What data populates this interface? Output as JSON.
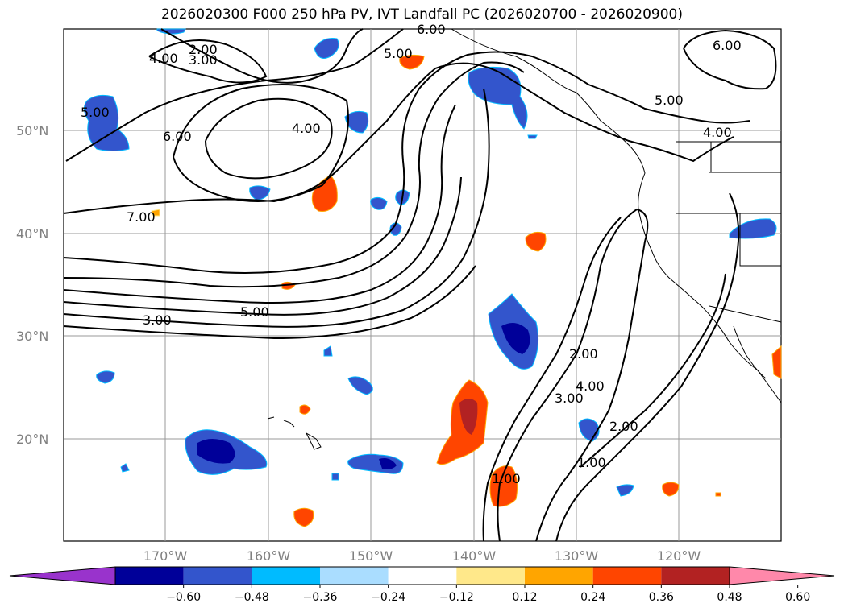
{
  "title": "2026020300 F000 250 hPa PV, IVT Landfall PC (2026020700 - 2026020900)",
  "lat_labels": [
    "50°N",
    "40°N",
    "30°N",
    "20°N"
  ],
  "lon_labels": [
    "170°W",
    "160°W",
    "150°W",
    "140°W",
    "130°W",
    "120°W"
  ],
  "contour_labels": [
    "2.00",
    "3.00",
    "4.00",
    "5.00",
    "6.00",
    "5.00",
    "6.00",
    "5.00",
    "4.00",
    "6.00",
    "4.00",
    "7.00",
    "3.00",
    "5.00",
    "2.00",
    "3.00",
    "4.00",
    "2.00",
    "1.00",
    "1.00"
  ],
  "colorbar": {
    "ticks": [
      "−0.60",
      "−0.48",
      "−0.36",
      "−0.24",
      "−0.12",
      "0.12",
      "0.24",
      "0.36",
      "0.48",
      "0.60"
    ],
    "colors": [
      "#9933cc",
      "#000099",
      "#3355cc",
      "#00bbff",
      "#aaddff",
      "#ffffff",
      "#ffe88a",
      "#ffa500",
      "#ff4500",
      "#b22222",
      "#ff88aa"
    ]
  },
  "colors": {
    "neg_strong": "#000099",
    "neg_mid": "#3355cc",
    "neg_light": "#00bbff",
    "pos_light": "#ffa500",
    "pos_mid": "#ff4500",
    "pos_strong": "#b22222"
  }
}
